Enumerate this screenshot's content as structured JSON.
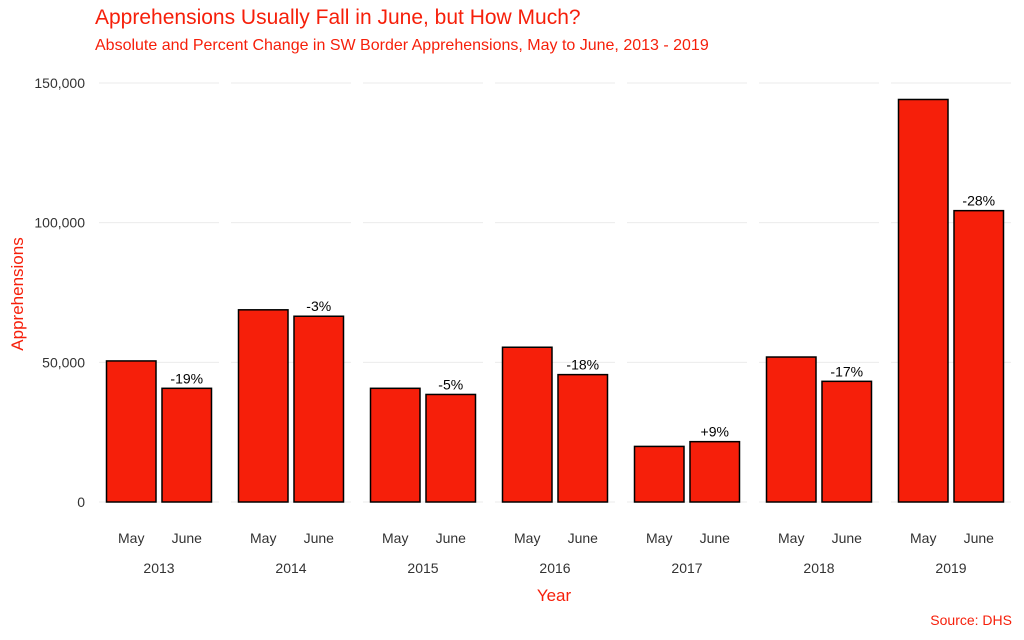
{
  "chart_data": {
    "type": "bar",
    "title": "Apprehensions Usually Fall in June, but How Much?",
    "subtitle": "Absolute and Percent Change in SW Border Apprehensions, May to June, 2013 - 2019",
    "xlabel": "Year",
    "ylabel": "Apprehensions",
    "caption": "Source: DHS",
    "ylim": [
      0,
      150000
    ],
    "yticks": [
      0,
      50000,
      100000,
      150000
    ],
    "ytick_labels": [
      "0",
      "50,000",
      "100,000",
      "150,000"
    ],
    "groups": [
      "2013",
      "2014",
      "2015",
      "2016",
      "2017",
      "2018",
      "2019"
    ],
    "subcategories": [
      "May",
      "June"
    ],
    "series": [
      {
        "name": "May",
        "values": [
          50500,
          68800,
          40700,
          55400,
          19900,
          51900,
          144100
        ]
      },
      {
        "name": "June",
        "values": [
          40700,
          66500,
          38500,
          45600,
          21600,
          43200,
          104300
        ]
      }
    ],
    "change_labels": [
      "-19%",
      "-3%",
      "-5%",
      "-18%",
      "+9%",
      "-17%",
      "-28%"
    ],
    "colors": {
      "bar": "#f61f0a",
      "outline": "#000000",
      "text_accent": "#f61f0a"
    },
    "grid": true
  }
}
